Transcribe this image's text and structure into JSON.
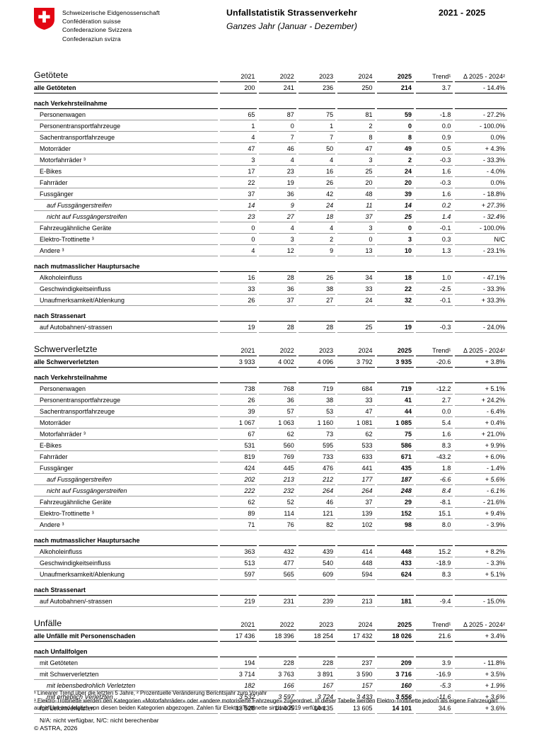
{
  "header": {
    "logo_lines": [
      "Schweizerische Eidgenossenschaft",
      "Confédération suisse",
      "Confederazione Svizzera",
      "Confederaziun svizra"
    ],
    "title": "Unfallstatistik Strassenverkehr",
    "subtitle": "Ganzes Jahr  (Januar - Dezember)",
    "period": "2021 - 2025"
  },
  "columns": [
    "2021",
    "2022",
    "2023",
    "2024",
    "2025",
    "Trend¹",
    "Δ 2025 - 2024²"
  ],
  "tables": [
    {
      "id": "getoetete",
      "title": "Getötete",
      "rows": [
        {
          "type": "total",
          "label": "alle Getöteten",
          "values": [
            "200",
            "241",
            "236",
            "250",
            "214",
            "3.7",
            "- 14.4%"
          ]
        },
        {
          "type": "section",
          "label": "nach Verkehrsteilnahme"
        },
        {
          "type": "data",
          "label": "Personenwagen",
          "values": [
            "65",
            "87",
            "75",
            "81",
            "59",
            "-1.8",
            "- 27.2%"
          ]
        },
        {
          "type": "data",
          "label": "Personentransportfahrzeuge",
          "values": [
            "1",
            "0",
            "1",
            "2",
            "0",
            "0.0",
            "- 100.0%"
          ]
        },
        {
          "type": "data",
          "label": "Sachentransportfahrzeuge",
          "values": [
            "4",
            "7",
            "7",
            "8",
            "8",
            "0.9",
            "0.0%"
          ]
        },
        {
          "type": "data",
          "label": "Motorräder",
          "values": [
            "47",
            "46",
            "50",
            "47",
            "49",
            "0.5",
            "+ 4.3%"
          ]
        },
        {
          "type": "data",
          "label": "Motorfahrräder ³",
          "values": [
            "3",
            "4",
            "4",
            "3",
            "2",
            "-0.3",
            "- 33.3%"
          ]
        },
        {
          "type": "data",
          "label": "E-Bikes",
          "values": [
            "17",
            "23",
            "16",
            "25",
            "24",
            "1.6",
            "- 4.0%"
          ]
        },
        {
          "type": "data",
          "label": "Fahrräder",
          "values": [
            "22",
            "19",
            "26",
            "20",
            "20",
            "-0.3",
            "0.0%"
          ]
        },
        {
          "type": "data",
          "label": "Fussgänger",
          "values": [
            "37",
            "36",
            "42",
            "48",
            "39",
            "1.6",
            "- 18.8%"
          ]
        },
        {
          "type": "sub",
          "label": "auf Fussgängerstreifen",
          "values": [
            "14",
            "9",
            "24",
            "11",
            "14",
            "0.2",
            "+ 27.3%"
          ]
        },
        {
          "type": "sub",
          "label": "nicht auf Fussgängerstreifen",
          "values": [
            "23",
            "27",
            "18",
            "37",
            "25",
            "1.4",
            "- 32.4%"
          ]
        },
        {
          "type": "data",
          "label": "Fahrzeugähnliche Geräte",
          "values": [
            "0",
            "4",
            "4",
            "3",
            "0",
            "-0.1",
            "- 100.0%"
          ]
        },
        {
          "type": "data",
          "label": "Elektro-Trottinette ³",
          "values": [
            "0",
            "3",
            "2",
            "0",
            "3",
            "0.3",
            "N/C"
          ]
        },
        {
          "type": "data",
          "label": "Andere ³",
          "values": [
            "4",
            "12",
            "9",
            "13",
            "10",
            "1.3",
            "- 23.1%"
          ]
        },
        {
          "type": "section",
          "label": "nach mutmasslicher Hauptursache"
        },
        {
          "type": "data",
          "label": "Alkoholeinfluss",
          "values": [
            "16",
            "28",
            "26",
            "34",
            "18",
            "1.0",
            "- 47.1%"
          ]
        },
        {
          "type": "data",
          "label": "Geschwindigkeitseinfluss",
          "values": [
            "33",
            "36",
            "38",
            "33",
            "22",
            "-2.5",
            "- 33.3%"
          ]
        },
        {
          "type": "data",
          "label": "Unaufmerksamkeit/Ablenkung",
          "values": [
            "26",
            "37",
            "27",
            "24",
            "32",
            "-0.1",
            "+ 33.3%"
          ]
        },
        {
          "type": "section",
          "label": "nach Strassenart"
        },
        {
          "type": "data",
          "label": "auf Autobahnen/-strassen",
          "values": [
            "19",
            "28",
            "28",
            "25",
            "19",
            "-0.3",
            "- 24.0%"
          ]
        }
      ]
    },
    {
      "id": "schwerverletzte",
      "title": "Schwerverletzte",
      "rows": [
        {
          "type": "total",
          "label": "alle Schwerverletzten",
          "values": [
            "3 933",
            "4 002",
            "4 096",
            "3 792",
            "3 935",
            "-20.6",
            "+ 3.8%"
          ]
        },
        {
          "type": "section",
          "label": "nach Verkehrsteilnahme"
        },
        {
          "type": "data",
          "label": "Personenwagen",
          "values": [
            "738",
            "768",
            "719",
            "684",
            "719",
            "-12.2",
            "+ 5.1%"
          ]
        },
        {
          "type": "data",
          "label": "Personentransportfahrzeuge",
          "values": [
            "26",
            "36",
            "38",
            "33",
            "41",
            "2.7",
            "+ 24.2%"
          ]
        },
        {
          "type": "data",
          "label": "Sachentransportfahrzeuge",
          "values": [
            "39",
            "57",
            "53",
            "47",
            "44",
            "0.0",
            "- 6.4%"
          ]
        },
        {
          "type": "data",
          "label": "Motorräder",
          "values": [
            "1 067",
            "1 063",
            "1 160",
            "1 081",
            "1 085",
            "5.4",
            "+ 0.4%"
          ]
        },
        {
          "type": "data",
          "label": "Motorfahrräder ³",
          "values": [
            "67",
            "62",
            "73",
            "62",
            "75",
            "1.6",
            "+ 21.0%"
          ]
        },
        {
          "type": "data",
          "label": "E-Bikes",
          "values": [
            "531",
            "560",
            "595",
            "533",
            "586",
            "8.3",
            "+ 9.9%"
          ]
        },
        {
          "type": "data",
          "label": "Fahrräder",
          "values": [
            "819",
            "769",
            "733",
            "633",
            "671",
            "-43.2",
            "+ 6.0%"
          ]
        },
        {
          "type": "data",
          "label": "Fussgänger",
          "values": [
            "424",
            "445",
            "476",
            "441",
            "435",
            "1.8",
            "- 1.4%"
          ]
        },
        {
          "type": "sub",
          "label": "auf Fussgängerstreifen",
          "values": [
            "202",
            "213",
            "212",
            "177",
            "187",
            "-6.6",
            "+ 5.6%"
          ]
        },
        {
          "type": "sub",
          "label": "nicht auf Fussgängerstreifen",
          "values": [
            "222",
            "232",
            "264",
            "264",
            "248",
            "8.4",
            "- 6.1%"
          ]
        },
        {
          "type": "data",
          "label": "Fahrzeugähnliche Geräte",
          "values": [
            "62",
            "52",
            "46",
            "37",
            "29",
            "-8.1",
            "- 21.6%"
          ]
        },
        {
          "type": "data",
          "label": "Elektro-Trottinette ³",
          "values": [
            "89",
            "114",
            "121",
            "139",
            "152",
            "15.1",
            "+ 9.4%"
          ]
        },
        {
          "type": "data",
          "label": "Andere ³",
          "values": [
            "71",
            "76",
            "82",
            "102",
            "98",
            "8.0",
            "- 3.9%"
          ]
        },
        {
          "type": "section",
          "label": "nach mutmasslicher Hauptursache"
        },
        {
          "type": "data",
          "label": "Alkoholeinfluss",
          "values": [
            "363",
            "432",
            "439",
            "414",
            "448",
            "15.2",
            "+ 8.2%"
          ]
        },
        {
          "type": "data",
          "label": "Geschwindigkeitseinfluss",
          "values": [
            "513",
            "477",
            "540",
            "448",
            "433",
            "-18.9",
            "- 3.3%"
          ]
        },
        {
          "type": "data",
          "label": "Unaufmerksamkeit/Ablenkung",
          "values": [
            "597",
            "565",
            "609",
            "594",
            "624",
            "8.3",
            "+ 5.1%"
          ]
        },
        {
          "type": "section",
          "label": "nach Strassenart"
        },
        {
          "type": "data",
          "label": "auf Autobahnen/-strassen",
          "values": [
            "219",
            "231",
            "239",
            "213",
            "181",
            "-9.4",
            "- 15.0%"
          ]
        }
      ]
    },
    {
      "id": "unfaelle",
      "title": "Unfälle",
      "rows": [
        {
          "type": "total",
          "label": "alle Unfälle mit Personenschaden",
          "values": [
            "17 436",
            "18 396",
            "18 254",
            "17 432",
            "18 026",
            "21.6",
            "+ 3.4%"
          ]
        },
        {
          "type": "section",
          "label": "nach Unfallfolgen"
        },
        {
          "type": "data",
          "label": "mit Getöteten",
          "values": [
            "194",
            "228",
            "228",
            "237",
            "209",
            "3.9",
            "- 11.8%"
          ]
        },
        {
          "type": "data",
          "label": "mit Schwerverletzten",
          "values": [
            "3 714",
            "3 763",
            "3 891",
            "3 590",
            "3 716",
            "-16.9",
            "+ 3.5%"
          ]
        },
        {
          "type": "sub",
          "label": "mit lebensbedrohlich Verletzten",
          "values": [
            "182",
            "166",
            "167",
            "157",
            "160",
            "-5.3",
            "+ 1.9%"
          ]
        },
        {
          "type": "sub",
          "label": "mit erheblich Verletzten",
          "values": [
            "3 532",
            "3 597",
            "3 724",
            "3 433",
            "3 556",
            "-11.6",
            "+ 3.6%"
          ]
        },
        {
          "type": "data",
          "label": "mit Leichtverletzten",
          "values": [
            "13 528",
            "14 405",
            "14 135",
            "13 605",
            "14 101",
            "34.6",
            "+ 3.6%"
          ]
        }
      ]
    }
  ],
  "table_note": "N/A: nicht verfügbar, N/C: nicht berechenbar",
  "footnotes": [
    "¹ Linearer Trend über die letzten 5 Jahre, ² Prozentuelle Veränderung Berichtsjahr zum Vorjahr",
    "³ Elektro-Trottinette werden den Kategorien «Motorfahrräder» oder «andere motorisierte Fahrzeuge» zugeordnet. In dieser Tabelle werden Elektro-Trottinette jedoch als eigene Fahrzeugart aufgeführt und folglich von diesen beiden Kategorien abgezogen. Zahlen für Elektro-Trottinette sind ab 2019 verfügbar."
  ],
  "copyright": "© ASTRA, 2026",
  "colors": {
    "swiss_red": "#e30613",
    "border_dark": "#000000",
    "border_gray": "#9b9b9b"
  }
}
